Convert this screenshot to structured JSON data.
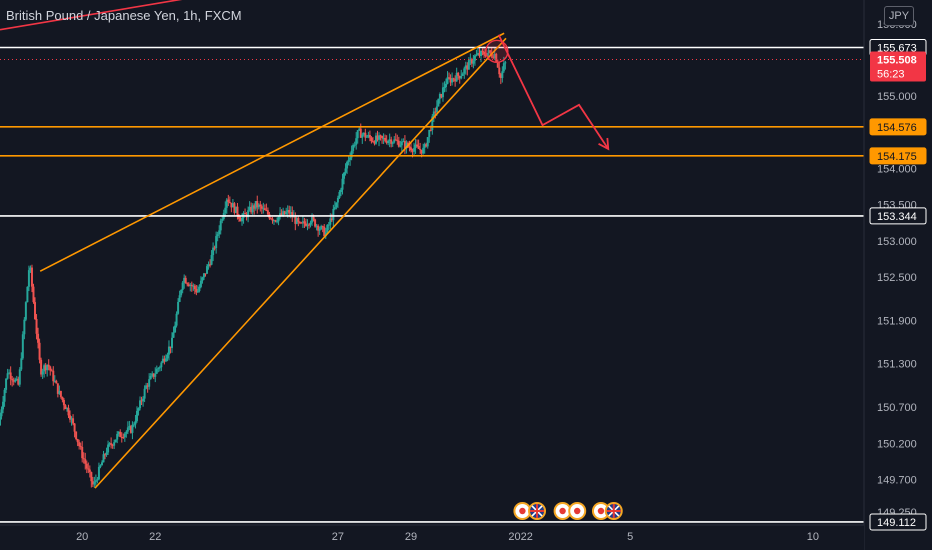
{
  "chart_data": {
    "type": "candlestick",
    "title": "British Pound / Japanese Yen, 1h, FXCM",
    "currency": "JPY",
    "ylim": [
      149.07,
      156.33
    ],
    "price_axis_ticks": [
      "156.000",
      "155.000",
      "154.000",
      "153.500",
      "153.000",
      "152.500",
      "151.900",
      "151.300",
      "150.700",
      "150.200",
      "149.700",
      "149.250"
    ],
    "time_axis_ticks": [
      "20",
      "22",
      "27",
      "29",
      "2022",
      "5",
      "10"
    ],
    "time_axis_tick_days": [
      20,
      22,
      27,
      29,
      32,
      35,
      40
    ],
    "xlim_days": [
      17.75,
      41.4
    ],
    "current_price": {
      "value": 155.508,
      "label": "155.508",
      "countdown": "56:23"
    },
    "horizontal_levels": [
      {
        "value": 155.673,
        "label": "155.673",
        "color": "#ffffff"
      },
      {
        "value": 154.576,
        "label": "154.576",
        "color": "#ff9800"
      },
      {
        "value": 154.175,
        "label": "154.175",
        "color": "#ff9800"
      },
      {
        "value": 153.344,
        "label": "153.344",
        "color": "#ffffff"
      },
      {
        "value": 149.112,
        "label": "149.112",
        "color": "#ffffff"
      }
    ],
    "trend_lines": [
      {
        "from": [
          20.35,
          149.58
        ],
        "to": [
          31.6,
          155.8
        ],
        "color": "#ff9800"
      },
      {
        "from": [
          18.85,
          152.58
        ],
        "to": [
          31.55,
          155.87
        ],
        "color": "#ff9800"
      },
      {
        "from": [
          17.75,
          155.92
        ],
        "to": [
          26.4,
          156.65
        ],
        "color": "#f23645"
      }
    ],
    "projection_path": {
      "points": [
        [
          31.4,
          155.85
        ],
        [
          32.6,
          154.6
        ],
        [
          33.6,
          154.88
        ],
        [
          34.4,
          154.27
        ]
      ],
      "color": "#f23645"
    },
    "marked_point": {
      "x": 31.35,
      "y": 155.62,
      "color": "#f23645"
    },
    "price_path_points": [
      [
        17.75,
        150.45
      ],
      [
        18.0,
        151.2
      ],
      [
        18.3,
        151.0
      ],
      [
        18.6,
        152.7
      ],
      [
        18.9,
        151.2
      ],
      [
        19.1,
        151.3
      ],
      [
        19.4,
        150.9
      ],
      [
        19.7,
        150.6
      ],
      [
        20.0,
        150.1
      ],
      [
        20.35,
        149.6
      ],
      [
        20.7,
        150.1
      ],
      [
        21.0,
        150.3
      ],
      [
        21.4,
        150.4
      ],
      [
        21.8,
        151.0
      ],
      [
        22.2,
        151.3
      ],
      [
        22.5,
        151.6
      ],
      [
        22.8,
        152.5
      ],
      [
        23.2,
        152.3
      ],
      [
        23.6,
        152.8
      ],
      [
        24.0,
        153.6
      ],
      [
        24.4,
        153.3
      ],
      [
        24.8,
        153.5
      ],
      [
        25.3,
        153.3
      ],
      [
        25.7,
        153.4
      ],
      [
        26.0,
        153.2
      ],
      [
        26.3,
        153.3
      ],
      [
        26.7,
        153.1
      ],
      [
        27.0,
        153.5
      ],
      [
        27.3,
        154.1
      ],
      [
        27.6,
        154.5
      ],
      [
        28.0,
        154.4
      ],
      [
        28.5,
        154.4
      ],
      [
        29.0,
        154.3
      ],
      [
        29.4,
        154.25
      ],
      [
        29.7,
        154.8
      ],
      [
        30.0,
        155.2
      ],
      [
        30.4,
        155.3
      ],
      [
        30.8,
        155.55
      ],
      [
        31.1,
        155.6
      ],
      [
        31.35,
        155.58
      ],
      [
        31.5,
        155.25
      ],
      [
        31.6,
        155.45
      ]
    ],
    "event_markers": [
      {
        "x": 32.05,
        "type": "flag"
      },
      {
        "x": 32.45,
        "type": "uk-flag"
      },
      {
        "x": 33.15,
        "type": "flag"
      },
      {
        "x": 33.55,
        "type": "flag"
      },
      {
        "x": 34.2,
        "type": "flag"
      },
      {
        "x": 34.55,
        "type": "uk-flag"
      }
    ]
  },
  "colors": {
    "background": "#131722",
    "up_candle": "#26a69a",
    "down_candle": "#ef5350",
    "axis_text": "#b2b5be",
    "orange": "#ff9800",
    "red": "#f23645",
    "white_line": "#ffffff",
    "price_badge": "#f23645"
  }
}
